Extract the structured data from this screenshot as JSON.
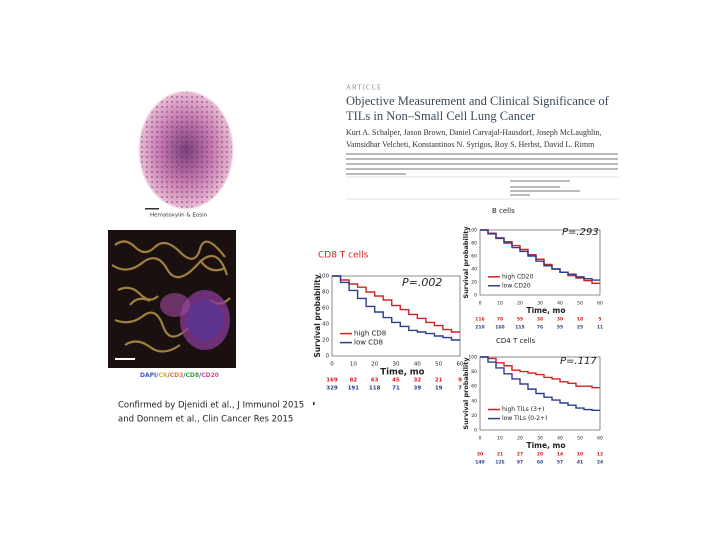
{
  "article": {
    "label": "ARTICLE",
    "title_lines": [
      "Objective Measurement and Clinical Significance of",
      "TILs in Non–Small Cell Lung Cancer"
    ],
    "author_lines": [
      "Kurt A. Schalper, Jason Brown, Daniel Carvajal-Hausdorf, Joseph McLaughlin,",
      "Vamsidhar Velcheti, Konstantinos N. Syrigos, Roy S. Herbst, David L. Rimm"
    ]
  },
  "images": {
    "he_caption": "Hematoxylin & Eosin",
    "if_caption_parts": [
      "DAPI/",
      "CK",
      "/",
      "CD3",
      "/",
      "CD8",
      "/",
      "CD20"
    ]
  },
  "panels": [
    {
      "title": "CD8 T cells",
      "p_value": "P=.002",
      "y_label": "Survival probability",
      "x_label": "Time, mo",
      "y_ticks": [
        "0",
        "20",
        "40",
        "60",
        "80",
        "100"
      ],
      "x_ticks": [
        "0",
        "10",
        "20",
        "30",
        "40",
        "50",
        "60"
      ],
      "legend": [
        "high CD8",
        "low CD8"
      ],
      "at_risk": [
        [
          "169",
          "82",
          "63",
          "45",
          "32",
          "21",
          "9"
        ],
        [
          "329",
          "191",
          "118",
          "71",
          "39",
          "19",
          "7"
        ]
      ]
    },
    {
      "title": "B cells",
      "p_value": "P=.293",
      "y_label": "Survival probability",
      "x_label": "Time, mo",
      "y_ticks": [
        "0",
        "20",
        "40",
        "60",
        "80",
        "100"
      ],
      "x_ticks": [
        "0",
        "10",
        "20",
        "30",
        "40",
        "50",
        "60"
      ],
      "legend": [
        "high CD20",
        "low CD20"
      ],
      "at_risk": [
        [
          "116",
          "78",
          "55",
          "38",
          "30",
          "18",
          "5"
        ],
        [
          "210",
          "160",
          "115",
          "76",
          "55",
          "25",
          "11"
        ]
      ]
    },
    {
      "title": "CD4 T cells",
      "p_value": "P=.117",
      "y_label": "Survival probability",
      "x_label": "Time, mo",
      "y_ticks": [
        "0",
        "20",
        "40",
        "60",
        "80",
        "100"
      ],
      "x_ticks": [
        "0",
        "10",
        "20",
        "30",
        "40",
        "50",
        "60"
      ],
      "legend": [
        "high TILs (3+)",
        "low TILs (0-2+)"
      ],
      "at_risk": [
        [
          "30",
          "21",
          "27",
          "20",
          "14",
          "10",
          "12"
        ],
        [
          "140",
          "126",
          "97",
          "68",
          "57",
          "41",
          "24"
        ]
      ]
    }
  ],
  "note_lines": [
    "Confirmed by Djenidi et al., J Immunol 2015",
    "and Donnem et al., Clin Cancer Res 2015"
  ]
}
